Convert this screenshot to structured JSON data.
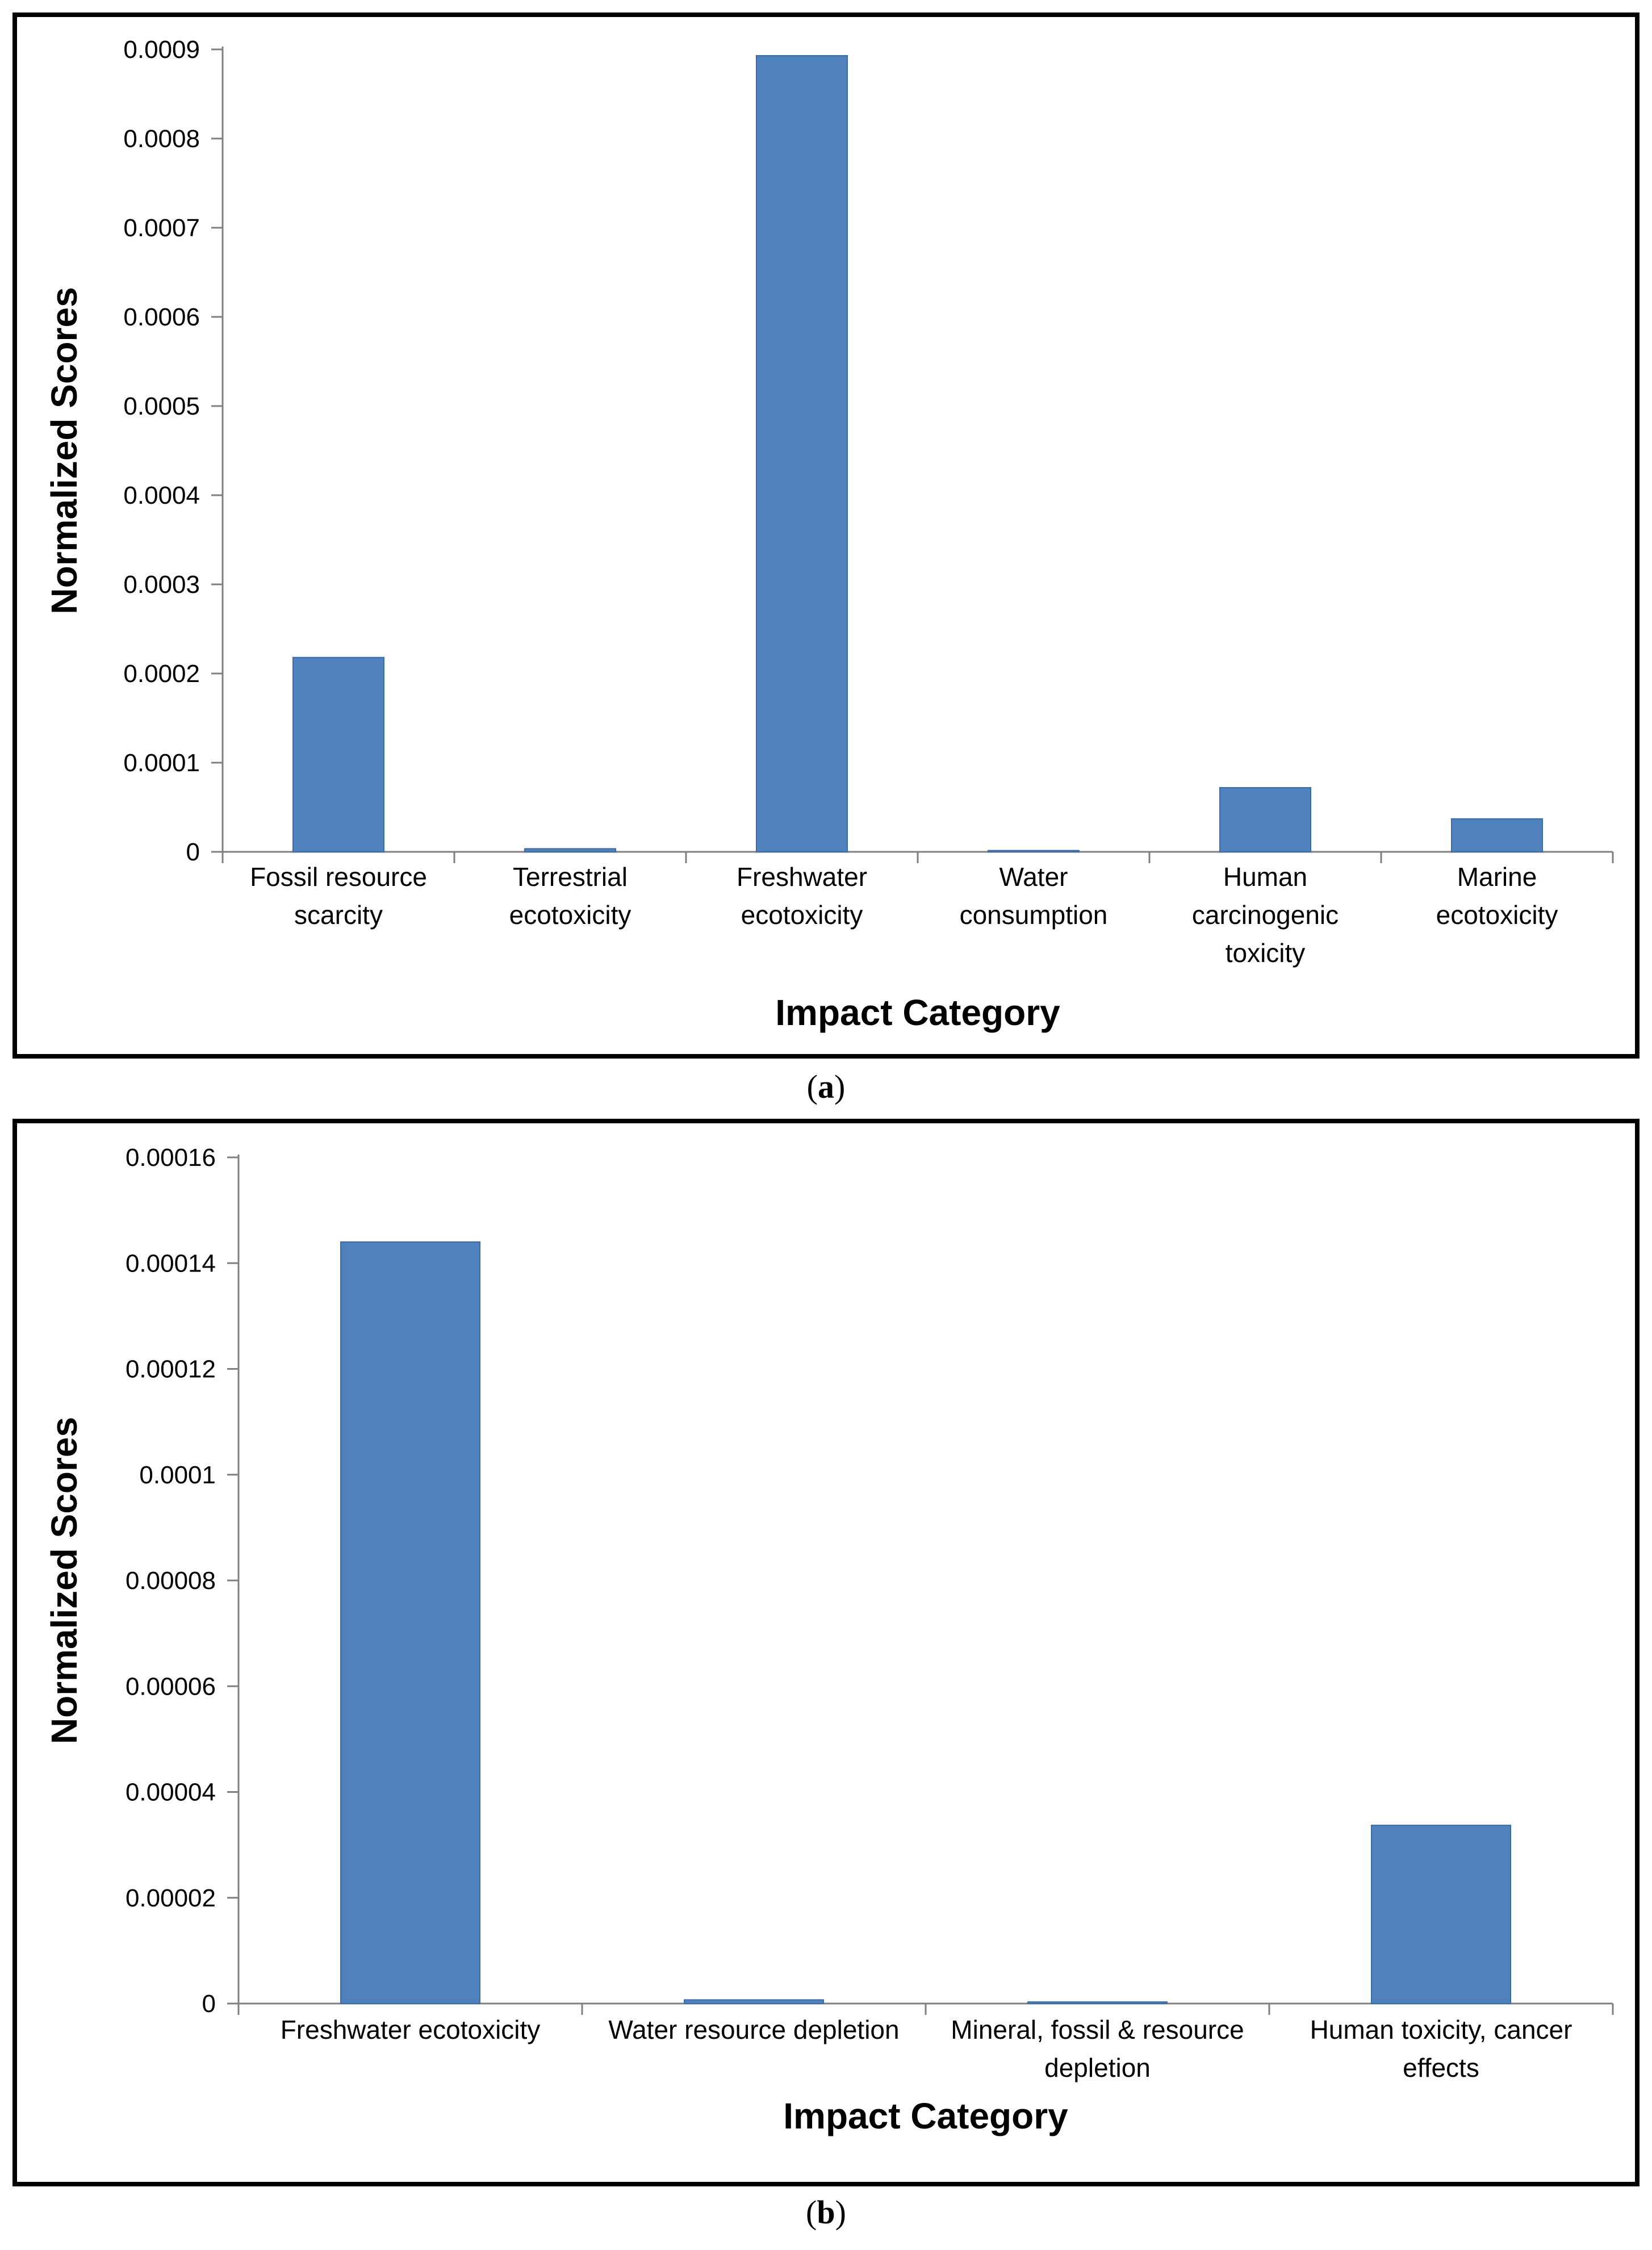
{
  "chart_data": [
    {
      "type": "bar",
      "panel": "a",
      "caption_label": "a",
      "categories": [
        [
          "Fossil resource",
          "scarcity"
        ],
        [
          "Terrestrial",
          "ecotoxicity"
        ],
        [
          "Freshwater",
          "ecotoxicity"
        ],
        [
          "Water",
          "consumption"
        ],
        [
          "Human",
          "carcinogenic",
          "toxicity"
        ],
        [
          "Marine",
          "ecotoxicity"
        ]
      ],
      "values": [
        0.000218,
        3.5e-06,
        0.000893,
        1.5e-06,
        7.2e-05,
        3.7e-05
      ],
      "ylim": [
        0,
        0.0009
      ],
      "yticks": [
        0,
        0.0001,
        0.0002,
        0.0003,
        0.0004,
        0.0005,
        0.0006,
        0.0007,
        0.0008,
        0.0009
      ],
      "ytick_labels": [
        "0",
        "0.0001",
        "0.0002",
        "0.0003",
        "0.0004",
        "0.0005",
        "0.0006",
        "0.0007",
        "0.0008",
        "0.0009"
      ],
      "xlabel": "Impact Category",
      "ylabel": "Normalized Scores",
      "bar_color": "#4f81bd",
      "grid": false
    },
    {
      "type": "bar",
      "panel": "b",
      "caption_label": "b",
      "categories": [
        [
          "Freshwater ecotoxicity"
        ],
        [
          "Water resource depletion"
        ],
        [
          "Mineral, fossil & resource",
          "depletion"
        ],
        [
          "Human toxicity, cancer",
          "effects"
        ]
      ],
      "values": [
        0.000144,
        7e-07,
        3e-07,
        3.37e-05
      ],
      "ylim": [
        0,
        0.00016
      ],
      "yticks": [
        0,
        2e-05,
        4e-05,
        6e-05,
        8e-05,
        0.0001,
        0.00012,
        0.00014,
        0.00016
      ],
      "ytick_labels": [
        "0",
        "0.00002",
        "0.00004",
        "0.00006",
        "0.00008",
        "0.0001",
        "0.00012",
        "0.00014",
        "0.00016"
      ],
      "xlabel": "Impact Category",
      "ylabel": "Normalized Scores",
      "bar_color": "#4f81bd",
      "grid": false
    }
  ]
}
